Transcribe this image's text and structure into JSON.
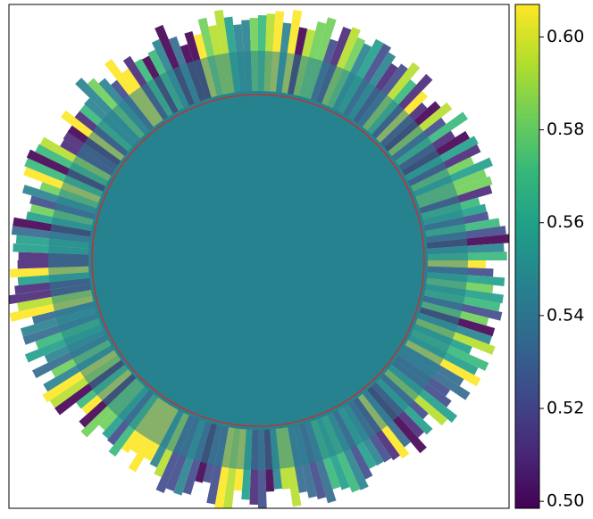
{
  "chart_data": {
    "type": "heatmap",
    "colormap": "viridis",
    "colorbar": {
      "ylim": [
        0.4985,
        0.607
      ],
      "yticks": [
        {
          "value": 0.5,
          "label": "0.50"
        },
        0.52,
        0.54,
        0.56,
        0.58,
        {
          "value": 0.6,
          "label": "0.60"
        }
      ]
    }
  }
}
